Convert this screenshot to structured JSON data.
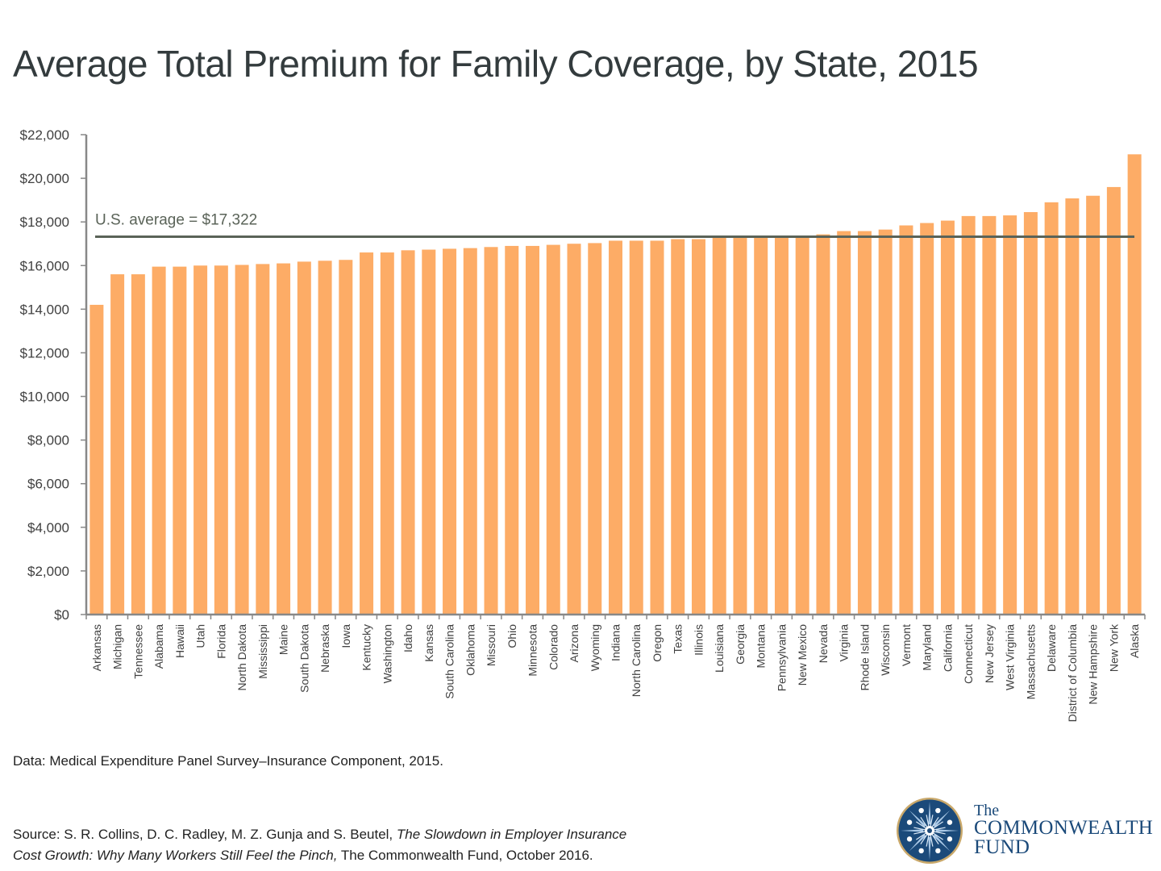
{
  "title": "Average Total Premium for Family Coverage, by State, 2015",
  "data_note": "Data: Medical Expenditure Panel Survey–Insurance Component, 2015.",
  "source": {
    "prefix": "Source: S. R. Collins, D. C. Radley, M. Z. Gunja and S. Beutel, ",
    "italic_line1": "The Slowdown in Employer Insurance",
    "italic_line2": "Cost Growth: Why Many Workers Still Feel the Pinch,",
    "suffix": " The Commonwealth Fund, October 2016."
  },
  "logo": {
    "line1": "The",
    "line2": "COMMONWEALTH",
    "line3": "FUND",
    "icon": "commonwealth-fund-emblem-icon"
  },
  "colors": {
    "bar": "#FDAC66",
    "reference_line": "#5A6358",
    "axis": "#888888",
    "text": "#404040",
    "logo_blue": "#1b4a7a",
    "logo_gold": "#c9a86a"
  },
  "chart_data": {
    "type": "bar",
    "title": "Average Total Premium for Family Coverage, by State, 2015",
    "xlabel": "",
    "ylabel": "",
    "ylim": [
      0,
      22000
    ],
    "yticks": [
      0,
      2000,
      4000,
      6000,
      8000,
      10000,
      12000,
      14000,
      16000,
      18000,
      20000,
      22000
    ],
    "ytick_labels": [
      "$0",
      "$2,000",
      "$4,000",
      "$6,000",
      "$8,000",
      "$10,000",
      "$12,000",
      "$14,000",
      "$16,000",
      "$18,000",
      "$20,000",
      "$22,000"
    ],
    "grid": false,
    "legend": "none",
    "categories": [
      "Arkansas",
      "Michigan",
      "Tennessee",
      "Alabama",
      "Hawaii",
      "Utah",
      "Florida",
      "North Dakota",
      "Mississippi",
      "Maine",
      "South Dakota",
      "Nebraska",
      "Iowa",
      "Kentucky",
      "Washington",
      "Idaho",
      "Kansas",
      "South Carolina",
      "Oklahoma",
      "Missouri",
      "Ohio",
      "Minnesota",
      "Colorado",
      "Arizona",
      "Wyoming",
      "Indiana",
      "North Carolina",
      "Oregon",
      "Texas",
      "Illinois",
      "Louisiana",
      "Georgia",
      "Montana",
      "Pennsylvania",
      "New Mexico",
      "Nevada",
      "Virginia",
      "Rhode Island",
      "Wisconsin",
      "Vermont",
      "Maryland",
      "California",
      "Connecticut",
      "New Jersey",
      "West Virginia",
      "Massachusetts",
      "Delaware",
      "District of Columbia",
      "New Hampshire",
      "New York",
      "Alaska"
    ],
    "values": [
      14200,
      15600,
      15600,
      15950,
      15950,
      16000,
      16000,
      16030,
      16070,
      16100,
      16180,
      16220,
      16260,
      16600,
      16600,
      16700,
      16730,
      16770,
      16800,
      16850,
      16900,
      16900,
      16950,
      17000,
      17030,
      17140,
      17140,
      17140,
      17210,
      17210,
      17300,
      17300,
      17300,
      17300,
      17300,
      17430,
      17580,
      17580,
      17650,
      17840,
      17950,
      18060,
      18270,
      18270,
      18300,
      18450,
      18900,
      19080,
      19200,
      19600,
      21100
    ],
    "reference_line": {
      "value": 17322,
      "label": "U.S. average = $17,322"
    }
  }
}
